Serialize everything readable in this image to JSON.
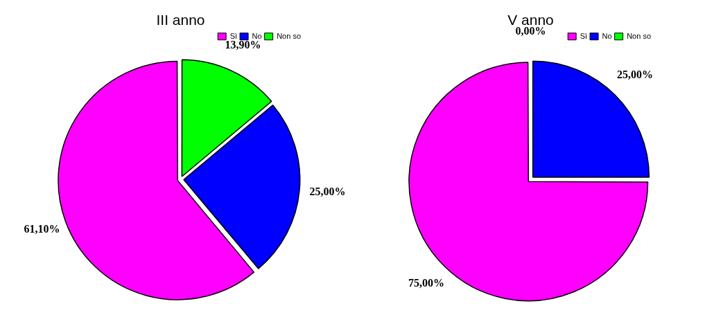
{
  "chart_data": [
    {
      "type": "pie",
      "title": "III anno",
      "categories": [
        "Sì",
        "No",
        "Non so"
      ],
      "values": [
        61.1,
        25,
        13.9
      ],
      "colors": [
        "#ff00ff",
        "#0000ff",
        "#00ff00"
      ],
      "value_labels": [
        "61,10%",
        "25,00%",
        "13,90%"
      ],
      "legend": "top right"
    },
    {
      "type": "pie",
      "title": "V anno",
      "categories": [
        "Sì",
        "No",
        "Non so"
      ],
      "values": [
        75,
        25,
        0
      ],
      "colors": [
        "#ff00ff",
        "#0000ff",
        "#00ff00"
      ],
      "value_labels": [
        "75,00%",
        "25,00%",
        "0,00%"
      ],
      "legend": "top right"
    }
  ]
}
